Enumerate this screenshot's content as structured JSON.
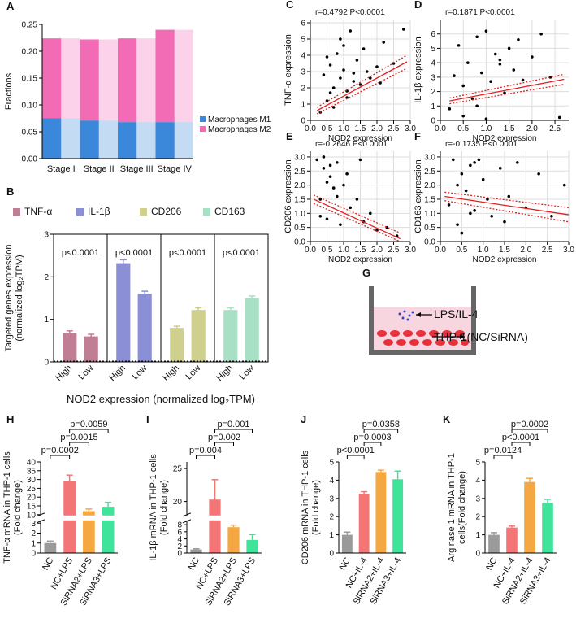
{
  "chart_data": [
    {
      "type": "stacked_bar",
      "panel": "A",
      "ylabel": "Fractions",
      "categories": [
        "Stage I",
        "Stage II",
        "Stage III",
        "Stage IV"
      ],
      "series": [
        {
          "name": "Macrophages M1",
          "color": "#3b87d9",
          "values": [
            0.075,
            0.071,
            0.068,
            0.068
          ]
        },
        {
          "name": "Macrophages M2",
          "color": "#f26bb5",
          "values": [
            0.149,
            0.151,
            0.156,
            0.172
          ]
        }
      ],
      "ylim": [
        0,
        0.25
      ],
      "yticks": [
        {
          "value": 0,
          "label": "0.00"
        },
        0.05,
        {
          "value": 0.1,
          "label": "0.10"
        },
        0.15,
        {
          "value": 0.2,
          "label": "0.20"
        },
        0.25
      ]
    },
    {
      "type": "grouped_bar",
      "panel": "B",
      "ylabel": [
        "Targeted genes expression",
        "(normalized log₂TPM)"
      ],
      "xlabel": "NOD2 expression (normalized log₂TPM)",
      "categories": [
        "High",
        "Low"
      ],
      "series": [
        {
          "name": "TNF-α",
          "color": "#c07e95",
          "values": [
            0.68,
            0.6
          ],
          "errors": [
            0.05,
            0.05
          ]
        },
        {
          "name": "IL-1β",
          "color": "#8a8fd6",
          "values": [
            2.32,
            1.6
          ],
          "errors": [
            0.08,
            0.06
          ]
        },
        {
          "name": "CD206",
          "color": "#cfcf8e",
          "values": [
            0.8,
            1.22
          ],
          "errors": [
            0.04,
            0.05
          ]
        },
        {
          "name": "CD163",
          "color": "#a8e0c5",
          "values": [
            1.22,
            1.5
          ],
          "errors": [
            0.05,
            0.05
          ]
        }
      ],
      "annotations": [
        "p<0.0001",
        "p<0.0001",
        "p<0.0001",
        "p<0.0001"
      ],
      "ylim": [
        0,
        3
      ],
      "yticks": [
        0,
        1,
        2,
        3
      ]
    },
    {
      "type": "scatter",
      "panel": "C",
      "annotation": "r=0.4792  P<0.0001",
      "xlabel": "NOD2 expression",
      "ylabel": "TNF-α expression",
      "color": "#000000",
      "grid": true,
      "x": [
        0.3,
        0.4,
        0.5,
        0.6,
        0.7,
        0.8,
        0.9,
        1.0,
        1.1,
        1.2,
        1.3,
        1.4,
        1.5,
        1.6,
        1.7,
        1.8,
        2.0,
        2.2,
        2.5,
        0.5,
        0.7,
        0.9,
        1.1,
        1.3,
        1.0,
        0.6,
        2.8,
        2.1
      ],
      "y": [
        0.5,
        2.8,
        1.2,
        3.4,
        2.0,
        4.1,
        2.6,
        3.1,
        1.8,
        5.5,
        2.4,
        3.7,
        2.2,
        4.4,
        3.0,
        2.6,
        3.3,
        4.8,
        3.5,
        3.9,
        0.8,
        5.0,
        1.4,
        2.9,
        4.6,
        1.7,
        5.6,
        2.3
      ],
      "fit": {
        "color": "#e02020",
        "x": [
          0.2,
          2.9
        ],
        "y": [
          0.6,
          3.6
        ],
        "lower": [
          0.4,
          3.2
        ],
        "upper": [
          0.8,
          4.0
        ]
      },
      "xlim": [
        0,
        3
      ],
      "xticks": [
        {
          "value": 0,
          "label": "0.0"
        },
        0.5,
        {
          "value": 1,
          "label": "1.0"
        },
        1.5,
        {
          "value": 2,
          "label": "2.0"
        },
        2.5,
        {
          "value": 3,
          "label": "3.0"
        }
      ],
      "ylim": [
        0,
        6.2
      ],
      "yticks": [
        0,
        1,
        2,
        3,
        4,
        5,
        6
      ]
    },
    {
      "type": "scatter",
      "panel": "D",
      "annotation": "r=0.1871  P<0.0001",
      "xlabel": "NOD2 expression",
      "ylabel": "IL-1β expression",
      "color": "#000000",
      "grid": true,
      "x": [
        0.2,
        0.3,
        0.4,
        0.5,
        0.6,
        0.7,
        0.8,
        0.9,
        1.0,
        1.1,
        1.2,
        1.3,
        1.4,
        1.5,
        1.6,
        1.8,
        2.0,
        2.2,
        2.4,
        2.6,
        0.5,
        0.8,
        1.0,
        1.3,
        1.7
      ],
      "y": [
        0.8,
        3.1,
        5.2,
        2.4,
        4.0,
        1.5,
        5.8,
        3.3,
        6.2,
        2.7,
        4.6,
        3.9,
        1.9,
        5.0,
        3.5,
        2.8,
        4.4,
        6.0,
        3.0,
        0.2,
        0.3,
        1.0,
        0.1,
        4.2,
        5.6
      ],
      "fit": {
        "color": "#e02020",
        "x": [
          0.2,
          2.7
        ],
        "y": [
          1.35,
          2.85
        ],
        "lower": [
          1.15,
          2.5
        ],
        "upper": [
          1.55,
          3.2
        ]
      },
      "xlim": [
        0,
        2.8
      ],
      "xticks": [
        {
          "value": 0,
          "label": "0.0"
        },
        0.5,
        {
          "value": 1,
          "label": "1.0"
        },
        1.5,
        {
          "value": 2,
          "label": "2.0"
        },
        2.5
      ],
      "ylim": [
        0,
        7
      ],
      "yticks": [
        0,
        1,
        2,
        3,
        4,
        5,
        6
      ]
    },
    {
      "type": "scatter",
      "panel": "E",
      "annotation": "r=-0.2646  P<0.0001",
      "xlabel": "NOD2 expression",
      "ylabel": "CD206 expression",
      "color": "#000000",
      "grid": true,
      "x": [
        0.2,
        0.3,
        0.4,
        0.5,
        0.6,
        0.7,
        0.8,
        0.9,
        1.0,
        1.2,
        1.4,
        1.6,
        1.8,
        2.0,
        2.3,
        2.6,
        0.4,
        0.6,
        0.8,
        1.1,
        1.5,
        0.3,
        0.5
      ],
      "y": [
        2.9,
        1.5,
        2.6,
        0.8,
        2.3,
        1.9,
        2.8,
        0.6,
        2.0,
        1.2,
        1.5,
        0.7,
        1.0,
        0.4,
        0.5,
        0.2,
        3.0,
        2.7,
        1.6,
        2.4,
        2.9,
        0.9,
        2.1
      ],
      "fit": {
        "color": "#e02020",
        "x": [
          0.1,
          2.7
        ],
        "y": [
          1.5,
          0.1
        ],
        "lower": [
          1.35,
          0.0
        ],
        "upper": [
          1.65,
          0.3
        ]
      },
      "xlim": [
        0,
        3
      ],
      "xticks": [
        {
          "value": 0,
          "label": "0.0"
        },
        0.5,
        {
          "value": 1,
          "label": "1.0"
        },
        1.5,
        {
          "value": 2,
          "label": "2.0"
        },
        2.5,
        {
          "value": 3,
          "label": "3.0"
        }
      ],
      "ylim": [
        0,
        3.2
      ],
      "yticks": [
        {
          "value": 0,
          "label": "0.0"
        },
        0.5,
        {
          "value": 1,
          "label": "1.0"
        },
        1.5,
        {
          "value": 2,
          "label": "2.0"
        },
        2.5,
        {
          "value": 3,
          "label": "3.0"
        }
      ]
    },
    {
      "type": "scatter",
      "panel": "F",
      "annotation": "r=-0.1735  P<0.0001",
      "xlabel": "NOD2 expression",
      "ylabel": "CD163 expression",
      "color": "#000000",
      "grid": true,
      "x": [
        0.2,
        0.3,
        0.4,
        0.5,
        0.6,
        0.7,
        0.8,
        0.9,
        1.0,
        1.2,
        1.4,
        1.6,
        1.8,
        2.0,
        2.3,
        2.6,
        2.9,
        0.5,
        0.8,
        1.1,
        1.5,
        0.4,
        0.7
      ],
      "y": [
        1.3,
        2.9,
        0.6,
        2.4,
        1.8,
        2.7,
        1.1,
        2.9,
        2.2,
        0.9,
        2.6,
        1.6,
        2.8,
        1.2,
        2.4,
        0.9,
        2.0,
        0.3,
        2.8,
        1.5,
        0.7,
        2.0,
        1.0
      ],
      "fit": {
        "color": "#e02020",
        "x": [
          0.1,
          3.0
        ],
        "y": [
          1.6,
          0.95
        ],
        "lower": [
          1.45,
          0.7
        ],
        "upper": [
          1.75,
          1.2
        ]
      },
      "xlim": [
        0,
        3
      ],
      "xticks": [
        {
          "value": 0,
          "label": "0.0"
        },
        0.5,
        {
          "value": 1,
          "label": "1.0"
        },
        1.5,
        {
          "value": 2,
          "label": "2.0"
        },
        2.5,
        {
          "value": 3,
          "label": "3.0"
        }
      ],
      "ylim": [
        0,
        3.2
      ],
      "yticks": [
        {
          "value": 0,
          "label": "0.0"
        },
        0.5,
        {
          "value": 1,
          "label": "1.0"
        },
        1.5,
        {
          "value": 2,
          "label": "2.0"
        },
        2.5,
        {
          "value": 3,
          "label": "3.0"
        }
      ]
    },
    {
      "type": "bar",
      "panel": "H",
      "ylabel": [
        "TNF-α mRNA in  THP-1 cells",
        "(Fold change)"
      ],
      "categories": [
        "NC",
        "NC+LPS",
        "SiRNA2+LPS",
        "SiRNA3+LPS"
      ],
      "colors": [
        "#9a9a9a",
        "#f47575",
        "#f5a742",
        "#3fe39a"
      ],
      "values": [
        1.0,
        29,
        12,
        14.5
      ],
      "errors": [
        0.2,
        3.5,
        1.2,
        2.5
      ],
      "brackets": [
        {
          "from": 0,
          "to": 1,
          "label": "p=0.0002"
        },
        {
          "from": 1,
          "to": 2,
          "label": "p=0.0015"
        },
        {
          "from": 1,
          "to": 3,
          "label": "p=0.0059"
        }
      ],
      "ylim": [
        0,
        40
      ],
      "ybreak": [
        3.2,
        10
      ],
      "yticks": [
        0,
        1,
        2,
        3,
        10,
        15,
        20,
        25,
        30,
        35,
        40
      ]
    },
    {
      "type": "bar",
      "panel": "I",
      "ylabel": [
        "IL-1β mRNA in THP-1 cells",
        "(Fold change)"
      ],
      "categories": [
        "NC",
        "NC+LPS",
        "SiRNA2+LPS",
        "SiRNA3+LPS"
      ],
      "colors": [
        "#9a9a9a",
        "#f47575",
        "#f5a742",
        "#3fe39a"
      ],
      "values": [
        1.0,
        20.3,
        7.3,
        3.7
      ],
      "errors": [
        0.2,
        3.0,
        0.6,
        1.5
      ],
      "brackets": [
        {
          "from": 0,
          "to": 1,
          "label": "p=0.004"
        },
        {
          "from": 1,
          "to": 2,
          "label": "p=0.002"
        },
        {
          "from": 1,
          "to": 3,
          "label": "p=0.001"
        }
      ],
      "ylim": [
        0,
        26
      ],
      "ybreak": [
        9,
        18
      ],
      "yticks": [
        0,
        2,
        4,
        6,
        8,
        20,
        25
      ]
    },
    {
      "type": "bar",
      "panel": "J",
      "ylabel": [
        "CD206 mRNA in THP-1 cells",
        "(Fold change)"
      ],
      "categories": [
        "NC",
        "NC+IL-4",
        "SiRNA2+IL-4",
        "SiRNA3+IL-4"
      ],
      "colors": [
        "#9a9a9a",
        "#f47575",
        "#f5a742",
        "#3fe39a"
      ],
      "values": [
        1.0,
        3.25,
        4.45,
        4.05
      ],
      "errors": [
        0.15,
        0.12,
        0.1,
        0.45
      ],
      "brackets": [
        {
          "from": 0,
          "to": 1,
          "label": "p<0.0001"
        },
        {
          "from": 1,
          "to": 2,
          "label": "p=0.0003"
        },
        {
          "from": 1,
          "to": 3,
          "label": "p=0.0358"
        }
      ],
      "ylim": [
        0,
        5
      ],
      "yticks": [
        0,
        1,
        2,
        3,
        4,
        5
      ]
    },
    {
      "type": "bar",
      "panel": "K",
      "ylabel": [
        "Arginase 1 mRNA in THP-1",
        "cells(Fold change)"
      ],
      "categories": [
        "NC",
        "NC+IL-4",
        "SiRNA2+IL-4",
        "SiRNA3+IL-4"
      ],
      "colors": [
        "#9a9a9a",
        "#f47575",
        "#f5a742",
        "#3fe39a"
      ],
      "values": [
        1.0,
        1.4,
        3.9,
        2.75
      ],
      "errors": [
        0.12,
        0.08,
        0.2,
        0.2
      ],
      "brackets": [
        {
          "from": 0,
          "to": 1,
          "label": "p=0.0124"
        },
        {
          "from": 1,
          "to": 2,
          "label": "p<0.0001"
        },
        {
          "from": 1,
          "to": 3,
          "label": "p=0.0002"
        }
      ],
      "ylim": [
        0,
        5
      ],
      "yticks": [
        0,
        1,
        2,
        3,
        4,
        5
      ]
    }
  ],
  "diagram": {
    "panel": "G",
    "treatment": "LPS/IL-4",
    "cells": "THP-1(NC/SiRNA)"
  }
}
